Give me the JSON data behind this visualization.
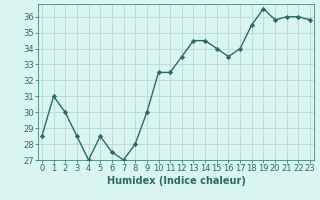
{
  "x": [
    0,
    1,
    2,
    3,
    4,
    5,
    6,
    7,
    8,
    9,
    10,
    11,
    12,
    13,
    14,
    15,
    16,
    17,
    18,
    19,
    20,
    21,
    22,
    23
  ],
  "y": [
    28.5,
    31.0,
    30.0,
    28.5,
    27.0,
    28.5,
    27.5,
    27.0,
    28.0,
    30.0,
    32.5,
    32.5,
    33.5,
    34.5,
    34.5,
    34.0,
    33.5,
    34.0,
    35.5,
    36.5,
    35.8,
    36.0,
    36.0,
    35.8
  ],
  "line_color": "#2e6b5e",
  "marker": "D",
  "markersize": 2.2,
  "linewidth": 1.0,
  "bg_color": "#d8f5f0",
  "grid_color": "#b8d8d2",
  "xlabel": "Humidex (Indice chaleur)",
  "xlabel_fontsize": 7,
  "tick_fontsize": 6,
  "ylim": [
    27,
    36.8
  ],
  "yticks": [
    27,
    28,
    29,
    30,
    31,
    32,
    33,
    34,
    35,
    36
  ],
  "xticks": [
    0,
    1,
    2,
    3,
    4,
    5,
    6,
    7,
    8,
    9,
    10,
    11,
    12,
    13,
    14,
    15,
    16,
    17,
    18,
    19,
    20,
    21,
    22,
    23
  ],
  "xlim": [
    -0.3,
    23.3
  ]
}
